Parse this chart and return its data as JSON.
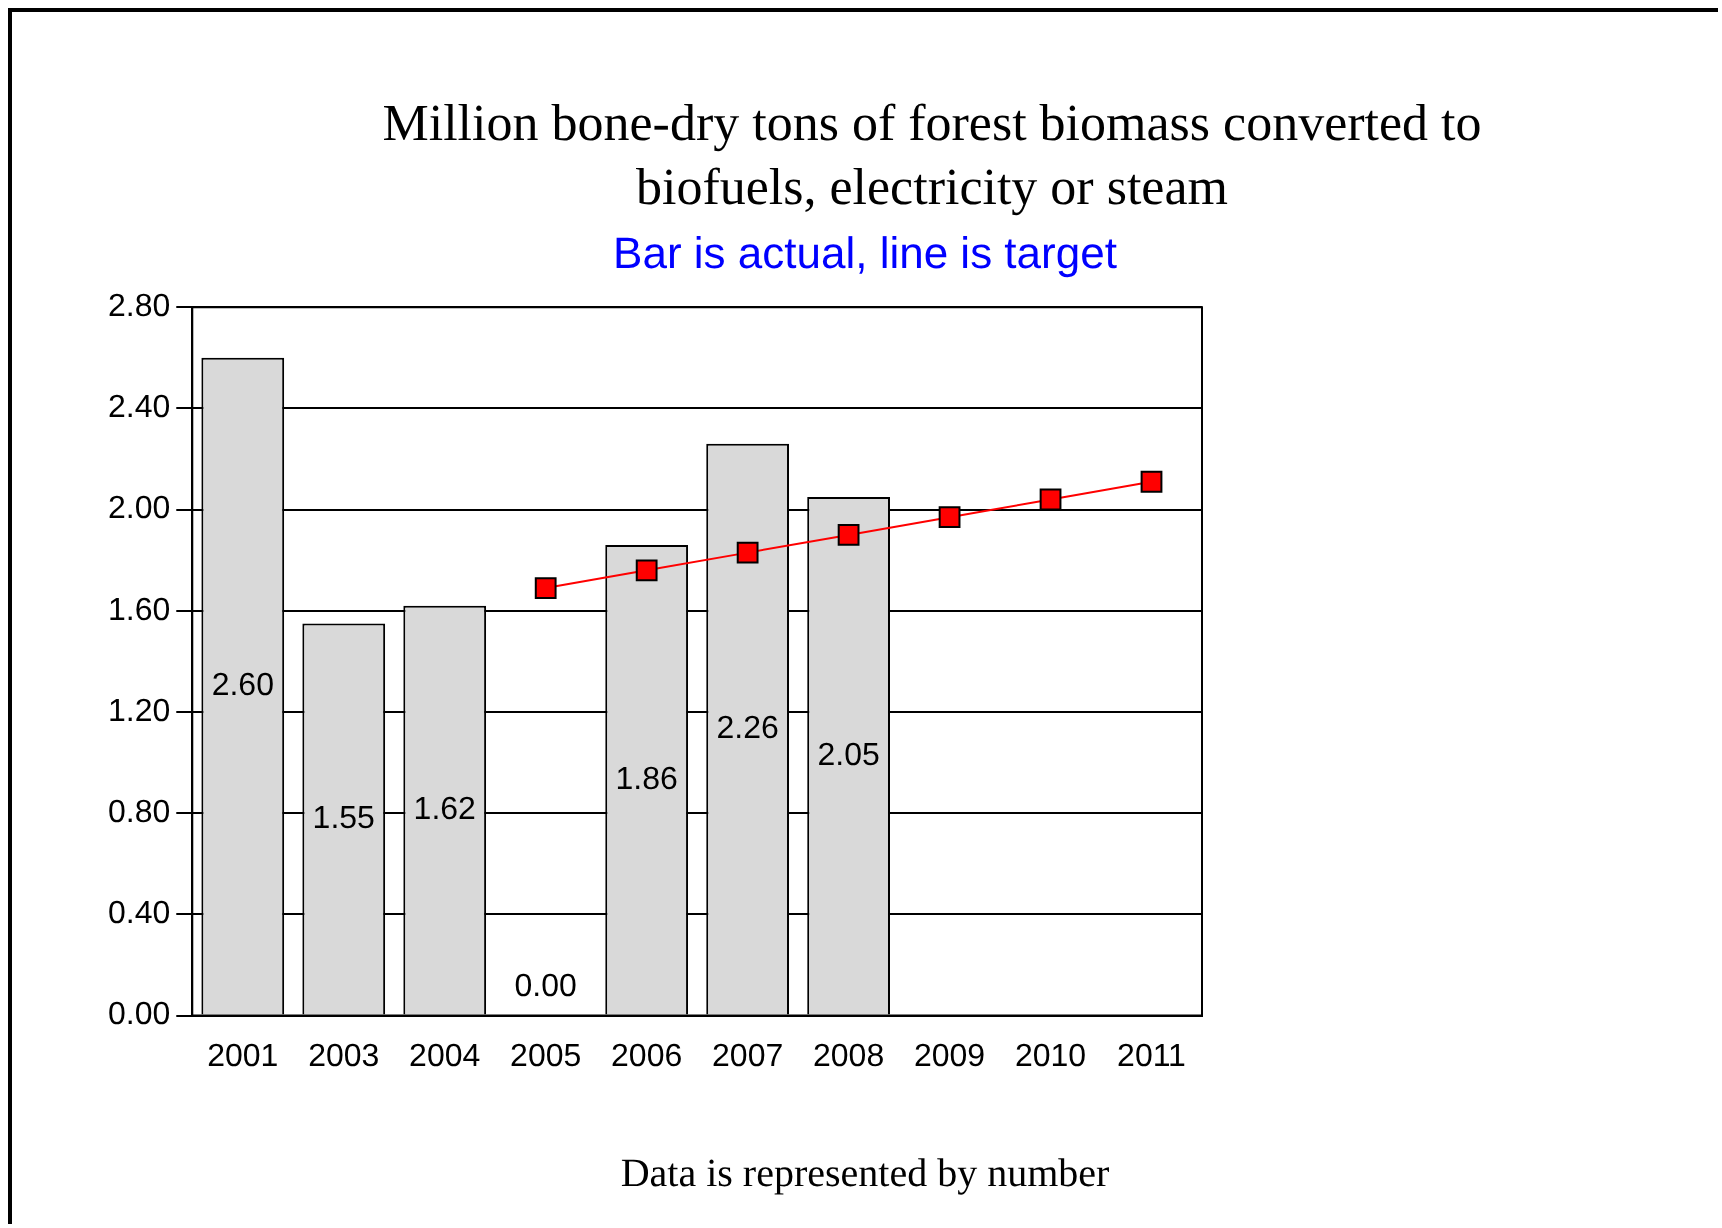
{
  "chart_data": {
    "type": "bar",
    "title": "Million bone-dry tons of forest biomass converted to biofuels, electricity or steam",
    "subtitle": "Bar is actual, line is target",
    "categories": [
      "2001",
      "2003",
      "2004",
      "2005",
      "2006",
      "2007",
      "2008",
      "2009",
      "2010",
      "2011"
    ],
    "series": [
      {
        "color": "#d9d9d9",
        "values": [
          2.6,
          1.55,
          1.62,
          0.0,
          1.86,
          2.26,
          2.05,
          null,
          null,
          null
        ],
        "value_labels": [
          "2.60",
          "1.55",
          "1.62",
          "0.00",
          "1.86",
          "2.26",
          "2.05",
          null,
          null,
          null
        ]
      },
      {
        "type": "line",
        "color": "#ff0000",
        "values": [
          null,
          null,
          null,
          1.69,
          1.76,
          1.83,
          1.9,
          1.97,
          2.04,
          2.11
        ],
        "marker": "square"
      }
    ],
    "ylim": [
      0,
      2.8
    ],
    "yticks": [
      {
        "value": 0,
        "label": "0.00"
      },
      {
        "value": 0.4,
        "label": "0.40"
      },
      {
        "value": 0.8,
        "label": "0.80"
      },
      {
        "value": 1.2,
        "label": "1.20"
      },
      {
        "value": 1.6,
        "label": "1.60"
      },
      {
        "value": 2.0,
        "label": "2.00"
      },
      {
        "value": 2.4,
        "label": "2.40"
      },
      {
        "value": 2.8,
        "label": "2.80"
      }
    ],
    "grid": "y",
    "legend": false,
    "annotations": [
      "Data is represented by number"
    ]
  }
}
